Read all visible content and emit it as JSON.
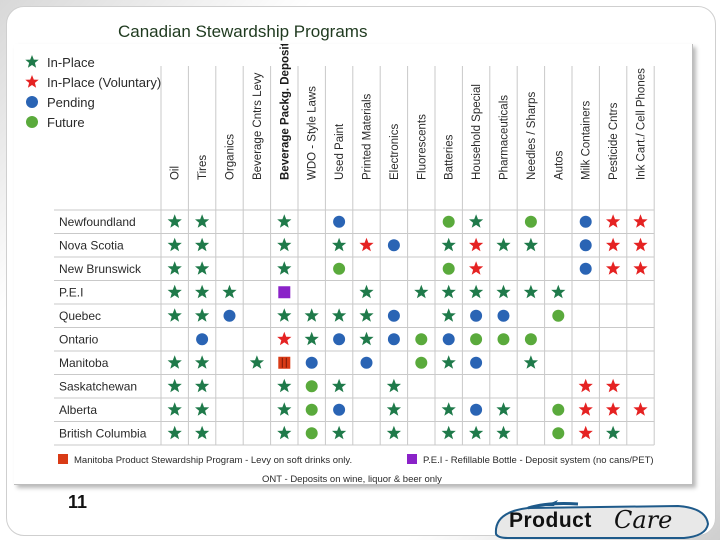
{
  "slide": {
    "title": "Canadian Stewardship Programs",
    "number": "11"
  },
  "logo": {
    "word1": "Product",
    "word2": "Care"
  },
  "colors": {
    "in_place": "#1f7a4a",
    "voluntary": "#e52222",
    "pending": "#2a64b4",
    "future": "#5aaa3c",
    "manitoba_square": "#d93b16",
    "pei_square": "#8a22c8"
  },
  "legend": [
    {
      "key": "in_place",
      "shape": "star",
      "label": "In-Place"
    },
    {
      "key": "voluntary",
      "shape": "star",
      "label": "In-Place (Voluntary)"
    },
    {
      "key": "pending",
      "shape": "circle",
      "label": "Pending"
    },
    {
      "key": "future",
      "shape": "circle",
      "label": "Future"
    }
  ],
  "columns": [
    "Oil",
    "Tires",
    "Organics",
    "Beverage Cntrs Levy",
    "Beverage Packg. Deposits",
    "WDO - Style Laws",
    "Used Paint",
    "Printed Materials",
    "Electronics",
    "Fluorescents",
    "Batteries",
    "Household Special",
    "Pharmaceuticals",
    "Needles / Sharps",
    "Autos",
    "Milk Containers",
    "Pesticide Cntrs",
    "Ink Cart./ Cell Phones"
  ],
  "bold_column": 4,
  "rows": [
    {
      "label": "Newfoundland",
      "cells": [
        "S",
        "S",
        "",
        "",
        "S",
        "",
        "P",
        "",
        "",
        "",
        "F",
        "S",
        "",
        "F",
        "",
        "P",
        "V",
        "V"
      ]
    },
    {
      "label": "Nova Scotia",
      "cells": [
        "S",
        "S",
        "",
        "",
        "S",
        "",
        "S",
        "V",
        "P",
        "",
        "S",
        "V",
        "S",
        "S",
        "",
        "P",
        "V",
        "V"
      ]
    },
    {
      "label": "New Brunswick",
      "cells": [
        "S",
        "S",
        "",
        "",
        "S",
        "",
        "F",
        "",
        "",
        "",
        "F",
        "V",
        "",
        "",
        "",
        "P",
        "V",
        "V"
      ]
    },
    {
      "label": "P.E.I",
      "cells": [
        "S",
        "S",
        "S",
        "",
        "Q",
        "",
        "",
        "S",
        "",
        "S",
        "S",
        "S",
        "S",
        "S",
        "S",
        "",
        "",
        ""
      ]
    },
    {
      "label": "Quebec",
      "cells": [
        "S",
        "S",
        "P",
        "",
        "S",
        "S",
        "S",
        "S",
        "P",
        "",
        "S",
        "P",
        "P",
        "",
        "F",
        "",
        "",
        ""
      ]
    },
    {
      "label": "Ontario",
      "cells": [
        "",
        "P",
        "",
        "",
        "V",
        "S",
        "P",
        "S",
        "P",
        "F",
        "P",
        "F",
        "F",
        "F",
        "",
        "",
        "",
        ""
      ]
    },
    {
      "label": "Manitoba",
      "cells": [
        "S",
        "S",
        "",
        "S",
        "M",
        "P",
        "",
        "P",
        "",
        "F",
        "S",
        "P",
        "",
        "S",
        "",
        "",
        "",
        ""
      ]
    },
    {
      "label": "Saskatchewan",
      "cells": [
        "S",
        "S",
        "",
        "",
        "S",
        "F",
        "S",
        "",
        "S",
        "",
        "",
        "",
        "",
        "",
        "",
        "V",
        "V",
        ""
      ]
    },
    {
      "label": "Alberta",
      "cells": [
        "S",
        "S",
        "",
        "",
        "S",
        "F",
        "P",
        "",
        "S",
        "",
        "S",
        "P",
        "S",
        "",
        "F",
        "V",
        "V",
        "V"
      ]
    },
    {
      "label": "British Columbia",
      "cells": [
        "S",
        "S",
        "",
        "",
        "S",
        "F",
        "S",
        "",
        "S",
        "",
        "S",
        "S",
        "S",
        "",
        "F",
        "V",
        "S",
        ""
      ]
    }
  ],
  "notes": {
    "manitoba": "Manitoba Product Stewardship Program -  Levy on soft drinks only.",
    "pei": "P.E.I - Refillable Bottle - Deposit system (no cans/PET)",
    "ont": "ONT - Deposits on wine, liquor & beer only"
  }
}
